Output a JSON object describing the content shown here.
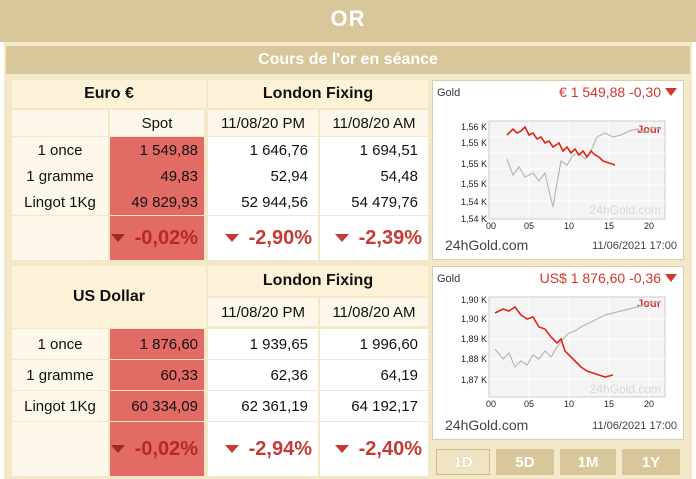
{
  "page": {
    "title": "OR",
    "subtitle": "Cours de l'or en séance"
  },
  "euro": {
    "currency": "Euro €",
    "group_header": "London Fixing",
    "cols": {
      "spot": "Spot",
      "pm": "11/08/20 PM",
      "am": "11/08/20 AM"
    },
    "rows": [
      {
        "label": "1 once",
        "spot": "1 549,88",
        "pm": "1 646,76",
        "am": "1 694,51"
      },
      {
        "label": "1 gramme",
        "spot": "49,83",
        "pm": "52,94",
        "am": "54,48"
      },
      {
        "label": "Lingot 1Kg",
        "spot": "49 829,93",
        "pm": "52 944,56",
        "am": "54 479,76"
      }
    ],
    "changes": {
      "spot": "-0,02%",
      "pm": "-2,90%",
      "am": "-2,39%"
    }
  },
  "usd": {
    "currency": "US Dollar",
    "group_header": "London Fixing",
    "cols": {
      "pm": "11/08/20 PM",
      "am": "11/08/20 AM"
    },
    "rows": [
      {
        "label": "1 once",
        "spot": "1 876,60",
        "pm": "1 939,65",
        "am": "1 996,60"
      },
      {
        "label": "1 gramme",
        "spot": "60,33",
        "pm": "62,36",
        "am": "64,19"
      },
      {
        "label": "Lingot 1Kg",
        "spot": "60 334,09",
        "pm": "62 361,19",
        "am": "64 192,17"
      }
    ],
    "changes": {
      "spot": "-0,02%",
      "pm": "-2,94%",
      "am": "-2,40%"
    }
  },
  "charts": [
    {
      "caption_left": "Gold",
      "caption_right": "€  1 549,88 -0,30",
      "footer_left": "24hGold.com",
      "footer_right": "11/06/2021 17:00",
      "watermark": "24hGold.com",
      "period_label": "Jour",
      "y_ticks": [
        "1,56 K",
        "1,55 K",
        "1,55 K",
        "1,55 K",
        "1,54 K",
        "1,54 K"
      ],
      "x_ticks": [
        "00",
        "05",
        "10",
        "15",
        "20"
      ]
    },
    {
      "caption_left": "Gold",
      "caption_right": "US$  1 876,60 -0,36",
      "footer_left": "24hGold.com",
      "footer_right": "11/06/2021 17:00",
      "watermark": "24hGold.com",
      "period_label": "Jour",
      "y_ticks": [
        "1,90 K",
        "1,90 K",
        "1,89 K",
        "1,88 K",
        "1,87 K"
      ],
      "x_ticks": [
        "00",
        "05",
        "10",
        "15",
        "20"
      ]
    }
  ],
  "tabs": [
    "1D",
    "5D",
    "1M",
    "1Y"
  ],
  "colors": {
    "header": "#d8c79a",
    "spot_cell": "#e36b66",
    "change_red": "#c43b34",
    "chart_red": "#d4372c"
  }
}
